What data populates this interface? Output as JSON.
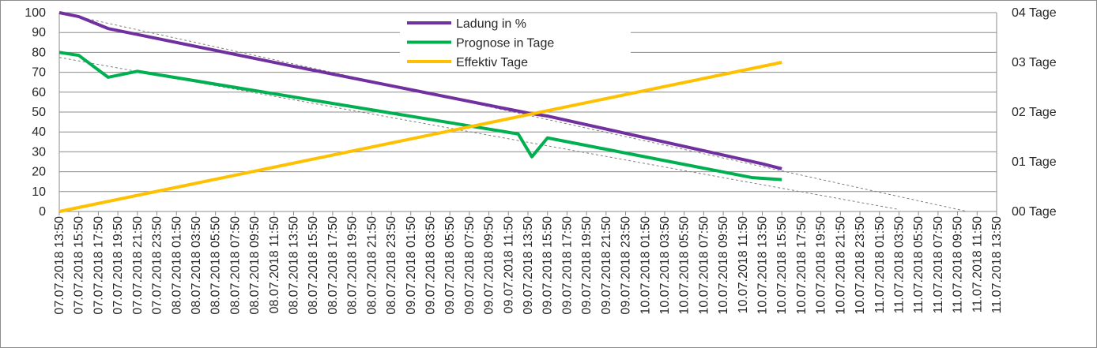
{
  "chart_data": {
    "type": "line",
    "title": "",
    "xlabel": "",
    "ylabel": "",
    "ylim": [
      0,
      100
    ],
    "yticks": [
      0,
      10,
      20,
      30,
      40,
      50,
      60,
      70,
      80,
      90,
      100
    ],
    "y2lim": [
      0,
      4
    ],
    "y2ticks": [
      "00 Tage",
      "01 Tage",
      "02 Tage",
      "03 Tage",
      "04 Tage"
    ],
    "grid": true,
    "legend_position": "top-center",
    "categories": [
      "07.07.2018 13:50",
      "07.07.2018 15:50",
      "07.07.2018 17:50",
      "07.07.2018 19:50",
      "07.07.2018 21:50",
      "07.07.2018 23:50",
      "08.07.2018 01:50",
      "08.07.2018 03:50",
      "08.07.2018 05:50",
      "08.07.2018 07:50",
      "08.07.2018 09:50",
      "08.07.2018 11:50",
      "08.07.2018 13:50",
      "08.07.2018 15:50",
      "08.07.2018 17:50",
      "08.07.2018 19:50",
      "08.07.2018 21:50",
      "08.07.2018 23:50",
      "09.07.2018 01:50",
      "09.07.2018 03:50",
      "09.07.2018 05:50",
      "09.07.2018 07:50",
      "09.07.2018 09:50",
      "09.07.2018 11:50",
      "09.07.2018 13:50",
      "09.07.2018 15:50",
      "09.07.2018 17:50",
      "09.07.2018 19:50",
      "09.07.2018 21:50",
      "09.07.2018 23:50",
      "10.07.2018 01:50",
      "10.07.2018 03:50",
      "10.07.2018 05:50",
      "10.07.2018 07:50",
      "10.07.2018 09:50",
      "10.07.2018 11:50",
      "10.07.2018 13:50",
      "10.07.2018 15:50",
      "10.07.2018 17:50",
      "10.07.2018 19:50",
      "10.07.2018 21:50",
      "10.07.2018 23:50",
      "11.07.2018 01:50",
      "11.07.2018 03:50",
      "11.07.2018 05:50",
      "11.07.2018 07:50",
      "11.07.2018 09:50",
      "11.07.2018 11:50",
      "11.07.2018 13:50"
    ],
    "series": [
      {
        "name": "Ladung in %",
        "color": "#7030a0",
        "axis": "left",
        "points": [
          [
            0,
            100
          ],
          [
            1,
            98
          ],
          [
            2.5,
            92
          ],
          [
            3,
            91
          ],
          [
            4,
            89
          ],
          [
            12,
            73
          ],
          [
            24,
            49.5
          ],
          [
            25,
            48
          ],
          [
            36,
            24
          ],
          [
            37,
            21.5
          ]
        ]
      },
      {
        "name": "Prognose in Tage",
        "color": "#00b050",
        "axis": "left",
        "points": [
          [
            0,
            80
          ],
          [
            1,
            78.5
          ],
          [
            2.5,
            67.5
          ],
          [
            4,
            70.5
          ],
          [
            23.5,
            39
          ],
          [
            24.2,
            27.5
          ],
          [
            25,
            37
          ],
          [
            35.5,
            17
          ],
          [
            37,
            16
          ]
        ]
      },
      {
        "name": "Effektiv Tage",
        "color": "#ffc000",
        "axis": "right",
        "points": [
          [
            0,
            0
          ],
          [
            37,
            3
          ]
        ]
      }
    ],
    "trendlines": [
      {
        "color": "#7f7f7f",
        "style": "dashed",
        "points": [
          [
            0,
            100
          ],
          [
            46.5,
            0
          ]
        ]
      },
      {
        "color": "#7f7f7f",
        "style": "dashed",
        "points": [
          [
            0,
            77.5
          ],
          [
            43,
            1
          ]
        ]
      }
    ]
  }
}
